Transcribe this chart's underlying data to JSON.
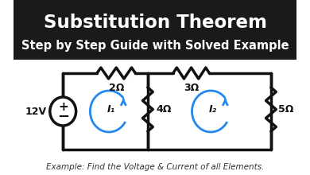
{
  "title": "Substitution Theorem",
  "subtitle": "Step by Step Guide with Solved Example",
  "footer": "Example: Find the Voltage & Current of all Elements.",
  "bg_top": "#1a1a1a",
  "bg_bottom": "#ffffff",
  "title_color": "#ffffff",
  "subtitle_color": "#ffffff",
  "footer_color": "#333333",
  "circuit_color": "#111111",
  "arrow_color": "#2288ee",
  "voltage_label": "12V",
  "r1_label": "2Ω",
  "r2_label": "3Ω",
  "r3_label": "4Ω",
  "r4_label": "5Ω",
  "i1_label": "I₁",
  "i2_label": "I₂"
}
